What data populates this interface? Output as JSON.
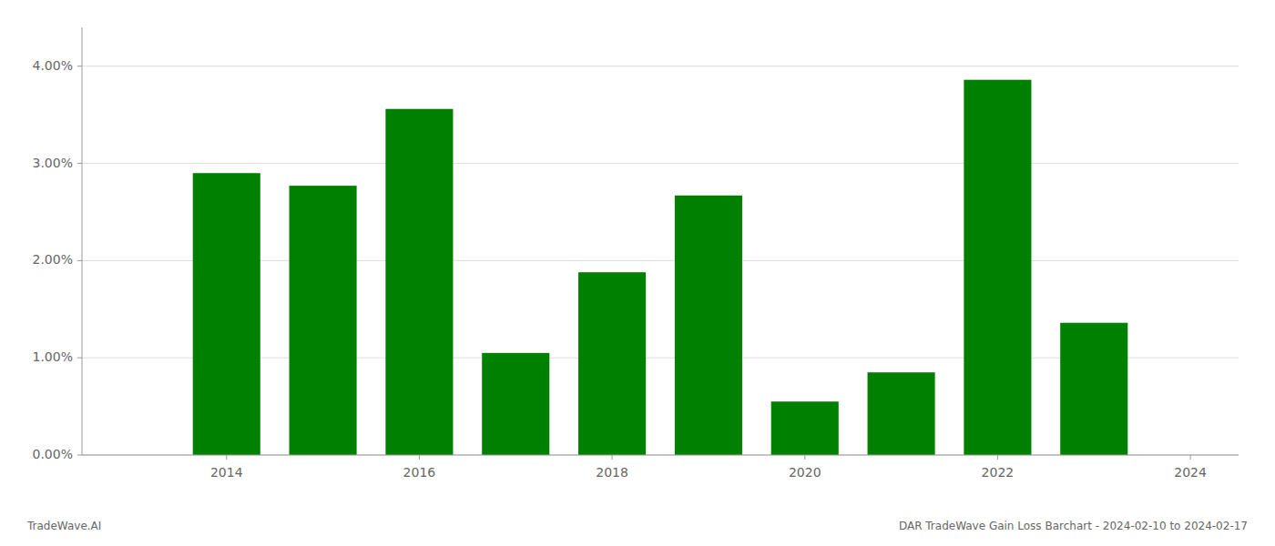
{
  "chart_data": {
    "type": "bar",
    "x": [
      2013,
      2014,
      2015,
      2016,
      2017,
      2018,
      2019,
      2020,
      2021,
      2022,
      2023,
      2024
    ],
    "values": [
      null,
      0.029,
      0.0277,
      0.0356,
      0.0105,
      0.0188,
      0.0267,
      0.0055,
      0.0085,
      0.0386,
      0.0136,
      null
    ],
    "color": "#008000",
    "xlim": [
      2012.5,
      2024.5
    ],
    "xticks": [
      2014,
      2016,
      2018,
      2020,
      2022,
      2024
    ],
    "ylim": [
      0.0,
      0.044
    ],
    "yticks": [
      {
        "value": 0.0,
        "label": "0.00%"
      },
      {
        "value": 0.01,
        "label": "1.00%"
      },
      {
        "value": 0.02,
        "label": "2.00%"
      },
      {
        "value": 0.03,
        "label": "3.00%"
      },
      {
        "value": 0.04,
        "label": "4.00%"
      }
    ],
    "grid": true,
    "annotations": [
      "TradeWave.AI",
      "DAR TradeWave Gain Loss Barchart - 2024-02-10 to 2024-02-17"
    ]
  }
}
